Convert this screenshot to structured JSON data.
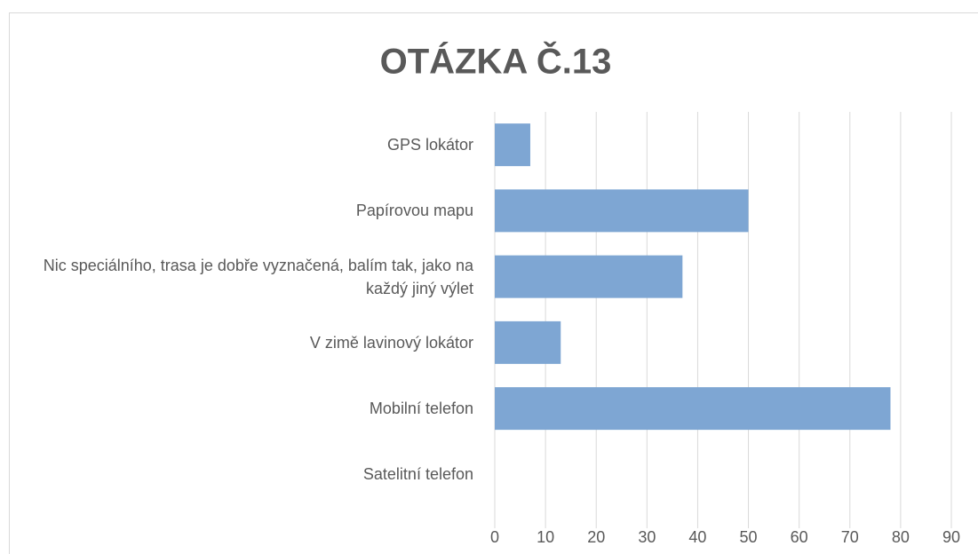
{
  "chart_data": {
    "type": "bar",
    "orientation": "horizontal",
    "title": "OTÁZKA Č.13",
    "categories": [
      "GPS lokátor",
      "Papírovou mapu",
      "Nic speciálního, trasa je dobře vyznačená, balím tak, jako na každý jiný výlet",
      "V zimě lavinový lokátor",
      "Mobilní telefon",
      "Satelitní telefon"
    ],
    "values": [
      7,
      50,
      37,
      13,
      78,
      0
    ],
    "color": "#7ea6d3",
    "xlim": [
      0,
      90
    ],
    "xticks": [
      0,
      10,
      20,
      30,
      40,
      50,
      60,
      70,
      80,
      90
    ],
    "grid": true
  }
}
